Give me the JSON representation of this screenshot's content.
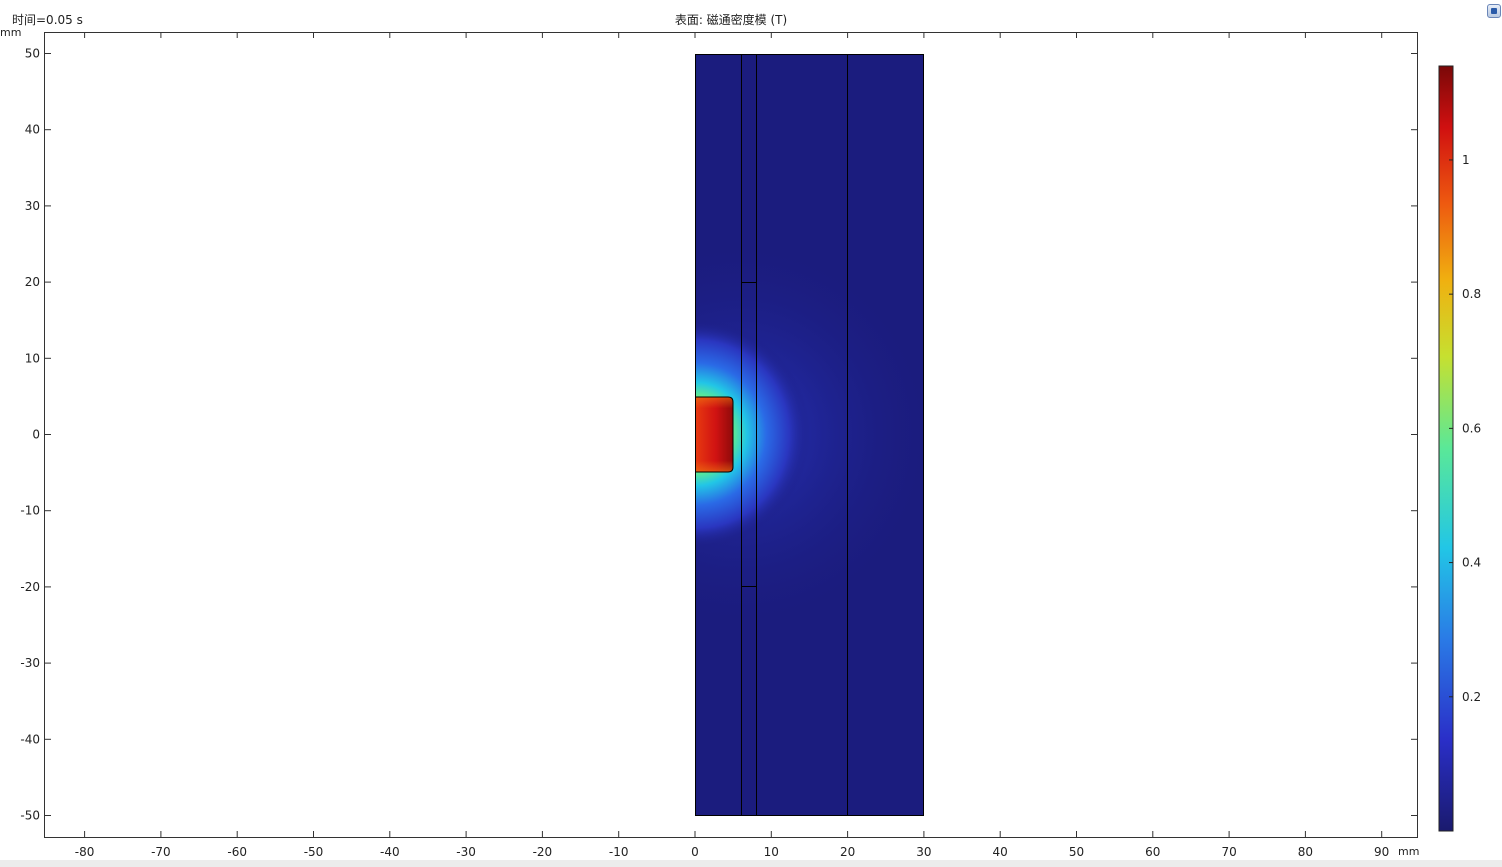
{
  "header": {
    "time_label": "时间=0.05 s",
    "title": "表面: 磁通密度模 (T)"
  },
  "axes": {
    "y_unit": "mm",
    "x_unit": "mm",
    "x_ticks": [
      "-80",
      "-70",
      "-60",
      "-50",
      "-40",
      "-30",
      "-20",
      "-10",
      "0",
      "10",
      "20",
      "30",
      "40",
      "50",
      "60",
      "70",
      "80",
      "90"
    ],
    "y_ticks": [
      "50",
      "40",
      "30",
      "20",
      "10",
      "0",
      "-10",
      "-20",
      "-30",
      "-40",
      "-50"
    ],
    "xlim": [
      -85,
      95
    ],
    "ylim": [
      -53,
      53
    ]
  },
  "colorbar": {
    "ticks": [
      "1",
      "0.8",
      "0.6",
      "0.4",
      "0.2"
    ],
    "tick_values": [
      1,
      0.8,
      0.6,
      0.4,
      0.2
    ],
    "range": [
      0,
      1.14
    ],
    "colormap": [
      "#1a1a6e",
      "#2a2fc8",
      "#2a7ae6",
      "#22c6e6",
      "#5ae898",
      "#c6e030",
      "#f0b010",
      "#ee5a10",
      "#d01010",
      "#7a0808"
    ]
  },
  "colors": {
    "background_field": "#1b1c7e",
    "magnet_hot": "#cc1010",
    "outline": "#000000"
  },
  "icons": {
    "corner_button": "graphics-toolbar-icon"
  }
}
